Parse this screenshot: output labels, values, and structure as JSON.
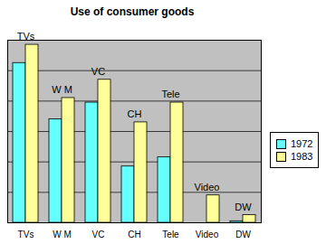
{
  "chart_data": {
    "type": "bar",
    "title": "Use of consumer goods",
    "categories": [
      "TVs",
      "W M",
      "VC",
      "CH",
      "Tele",
      "Video",
      "DW"
    ],
    "annotations": [
      "TVs",
      "W M",
      "VC",
      "CH",
      "Tele",
      "Video",
      "DW"
    ],
    "series": [
      {
        "name": "1972",
        "color": "#66ffff",
        "values": [
          105,
          68,
          79,
          37,
          43,
          0,
          1
        ]
      },
      {
        "name": "1983",
        "color": "#ffff99",
        "values": [
          117,
          82,
          94,
          66,
          79,
          18,
          5
        ]
      }
    ],
    "ylim": [
      0,
      120
    ],
    "yticks": [
      0,
      20,
      40,
      60,
      80,
      100,
      120
    ],
    "grid": true,
    "legend": "right",
    "tick_labels": "x"
  }
}
